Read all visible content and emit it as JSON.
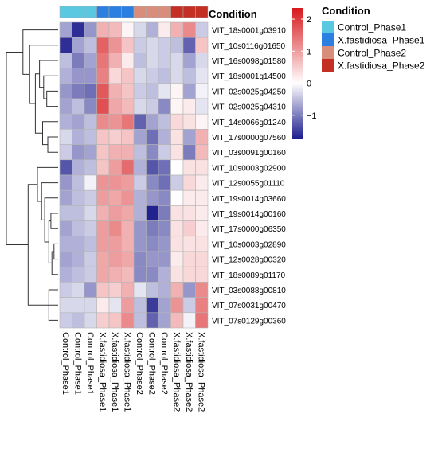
{
  "chart_data": {
    "type": "heatmap",
    "title": "",
    "annotation_title": "Condition",
    "legend_title": "Condition",
    "legend_entries": [
      {
        "label": "Control_Phase1",
        "color": "#5bc8e2"
      },
      {
        "label": "X.fastidiosa_Phase1",
        "color": "#2a7fe0"
      },
      {
        "label": "Control_Phase2",
        "color": "#d98e7c"
      },
      {
        "label": "X.fastidiosa_Phase2",
        "color": "#c42f24"
      }
    ],
    "colorbar": {
      "ticks": [
        2,
        1,
        0,
        -1
      ],
      "tick_labels": [
        "2",
        "1",
        "0",
        "−1"
      ],
      "range": [
        -1.75,
        2.35
      ],
      "colors": {
        "low": "#1a1a8c",
        "mid": "#ffffff",
        "high": "#d7191c"
      }
    },
    "columns": [
      {
        "label": "Control_Phase1",
        "group": 0
      },
      {
        "label": "Control_Phase1",
        "group": 0
      },
      {
        "label": "Control_Phase1",
        "group": 0
      },
      {
        "label": "X.fastidiosa_Phase1",
        "group": 1
      },
      {
        "label": "X.fastidiosa_Phase1",
        "group": 1
      },
      {
        "label": "X.fastidiosa_Phase1",
        "group": 1
      },
      {
        "label": "Control_Phase2",
        "group": 2
      },
      {
        "label": "Control_Phase2",
        "group": 2
      },
      {
        "label": "Control_Phase2",
        "group": 2
      },
      {
        "label": "X.fastidiosa_Phase2",
        "group": 3
      },
      {
        "label": "X.fastidiosa_Phase2",
        "group": 3
      },
      {
        "label": "X.fastidiosa_Phase2",
        "group": 3
      }
    ],
    "rows": [
      "VIT_18s0001g03910",
      "VIT_10s0116g01650",
      "VIT_16s0098g01580",
      "VIT_18s0001g14500",
      "VIT_02s0025g04250",
      "VIT_02s0025g04310",
      "VIT_14s0066g01240",
      "VIT_17s0000g07560",
      "VIT_03s0091g00160",
      "VIT_10s0003g02900",
      "VIT_12s0055g01110",
      "VIT_19s0014g03660",
      "VIT_19s0014g00160",
      "VIT_17s0000g06350",
      "VIT_10s0003g02890",
      "VIT_12s0028g00320",
      "VIT_18s0089g01170",
      "VIT_03s0088g00810",
      "VIT_07s0031g00470",
      "VIT_07s0129g00360"
    ],
    "values": [
      [
        -0.7,
        -1.6,
        -0.8,
        0.8,
        0.7,
        0.1,
        -0.3,
        -0.6,
        0.2,
        0.8,
        1.2,
        -0.4
      ],
      [
        -1.6,
        -0.7,
        -0.5,
        1.6,
        1.1,
        0.6,
        -0.4,
        -0.3,
        -0.4,
        -0.5,
        -1.2,
        0.6
      ],
      [
        -0.5,
        -1.0,
        -0.7,
        1.4,
        0.8,
        0.2,
        -0.5,
        -0.3,
        -0.4,
        -0.3,
        -0.7,
        -0.3
      ],
      [
        -0.6,
        -0.8,
        -0.8,
        1.3,
        0.4,
        0.6,
        -0.3,
        -0.4,
        -0.5,
        -0.3,
        -0.5,
        -0.2
      ],
      [
        -0.8,
        -1.0,
        -1.1,
        1.7,
        0.8,
        0.6,
        -0.4,
        -0.5,
        -0.2,
        0.1,
        -0.7,
        -0.1
      ],
      [
        -0.7,
        -0.5,
        -0.9,
        1.8,
        0.9,
        0.7,
        -0.3,
        -0.4,
        -0.9,
        0.1,
        0.2,
        -0.2
      ],
      [
        -0.6,
        -0.7,
        -0.5,
        1.2,
        1.1,
        1.4,
        -1.2,
        -0.7,
        -0.5,
        0.4,
        0.3,
        0.1
      ],
      [
        -0.3,
        -0.6,
        -0.5,
        0.6,
        0.5,
        0.6,
        -0.7,
        -1.1,
        -0.6,
        0.3,
        -0.7,
        0.8
      ],
      [
        -0.4,
        -0.8,
        -0.7,
        0.6,
        0.8,
        0.8,
        -0.5,
        -0.9,
        -0.4,
        0.3,
        -1.0,
        0.7
      ],
      [
        -1.3,
        -0.6,
        -0.5,
        0.6,
        1.0,
        1.5,
        -0.6,
        -1.3,
        -1.1,
        0.0,
        0.3,
        0.3
      ],
      [
        -0.8,
        -0.5,
        -0.1,
        1.1,
        1.1,
        1.0,
        -0.4,
        -0.9,
        -1.1,
        -0.4,
        0.4,
        0.2
      ],
      [
        -0.7,
        -0.5,
        -0.4,
        1.0,
        0.9,
        1.1,
        -0.6,
        -0.8,
        -0.9,
        0.0,
        0.2,
        0.2
      ],
      [
        -0.5,
        -0.5,
        -0.3,
        0.8,
        1.0,
        0.9,
        -0.6,
        -1.7,
        -1.0,
        0.3,
        0.3,
        0.2
      ],
      [
        -0.7,
        -0.5,
        -0.4,
        1.0,
        1.2,
        0.8,
        -0.8,
        -1.0,
        -0.9,
        0.3,
        0.5,
        0.2
      ],
      [
        -0.6,
        -0.6,
        -0.5,
        1.0,
        1.0,
        0.8,
        -0.8,
        -0.9,
        -0.8,
        0.3,
        0.3,
        0.3
      ],
      [
        -0.7,
        -0.6,
        -0.4,
        0.9,
        1.0,
        0.9,
        -0.9,
        -0.8,
        -0.8,
        0.2,
        0.4,
        0.4
      ],
      [
        -0.6,
        -0.5,
        -0.4,
        0.9,
        0.8,
        0.7,
        -0.9,
        -0.9,
        -0.6,
        0.3,
        0.4,
        0.4
      ],
      [
        -0.4,
        -0.3,
        -0.8,
        0.6,
        0.5,
        0.8,
        -0.2,
        -0.5,
        -0.6,
        0.8,
        -0.8,
        1.2
      ],
      [
        -0.3,
        -0.3,
        -0.3,
        0.2,
        -0.2,
        1.0,
        -0.5,
        -1.5,
        -0.7,
        1.1,
        -0.4,
        1.3
      ],
      [
        -0.4,
        -0.5,
        -0.3,
        0.5,
        0.6,
        1.2,
        -0.5,
        -1.2,
        -0.7,
        0.7,
        -0.1,
        1.4
      ]
    ],
    "row_dendrogram": [
      {
        "a": 17,
        "b": 19,
        "h": 0.18
      },
      {
        "a": 18,
        "b": 20,
        "h": 0.27
      },
      {
        "a": 14,
        "b": 15,
        "h": 0.08
      },
      {
        "a": 22,
        "b": 16,
        "h": 0.12
      },
      {
        "a": 12,
        "b": 13,
        "h": 0.14
      },
      {
        "a": 24,
        "b": 23,
        "h": 0.18
      },
      {
        "a": 11,
        "b": 25,
        "h": 0.26
      },
      {
        "a": 10,
        "b": 26,
        "h": 0.32
      },
      {
        "a": 9,
        "b": 27,
        "h": 0.4
      },
      {
        "a": 28,
        "b": 21,
        "h": 0.58
      },
      {
        "a": 7,
        "b": 8,
        "h": 0.2
      },
      {
        "a": 6,
        "b": 30,
        "h": 0.3
      },
      {
        "a": 4,
        "b": 5,
        "h": 0.22
      },
      {
        "a": 3,
        "b": 32,
        "h": 0.28
      },
      {
        "a": 2,
        "b": 33,
        "h": 0.36
      },
      {
        "a": 34,
        "b": 31,
        "h": 0.44
      },
      {
        "a": 1,
        "b": 35,
        "h": 0.55
      },
      {
        "a": 0,
        "b": 36,
        "h": 0.68
      },
      {
        "a": 37,
        "b": 29,
        "h": 1.0
      }
    ]
  }
}
